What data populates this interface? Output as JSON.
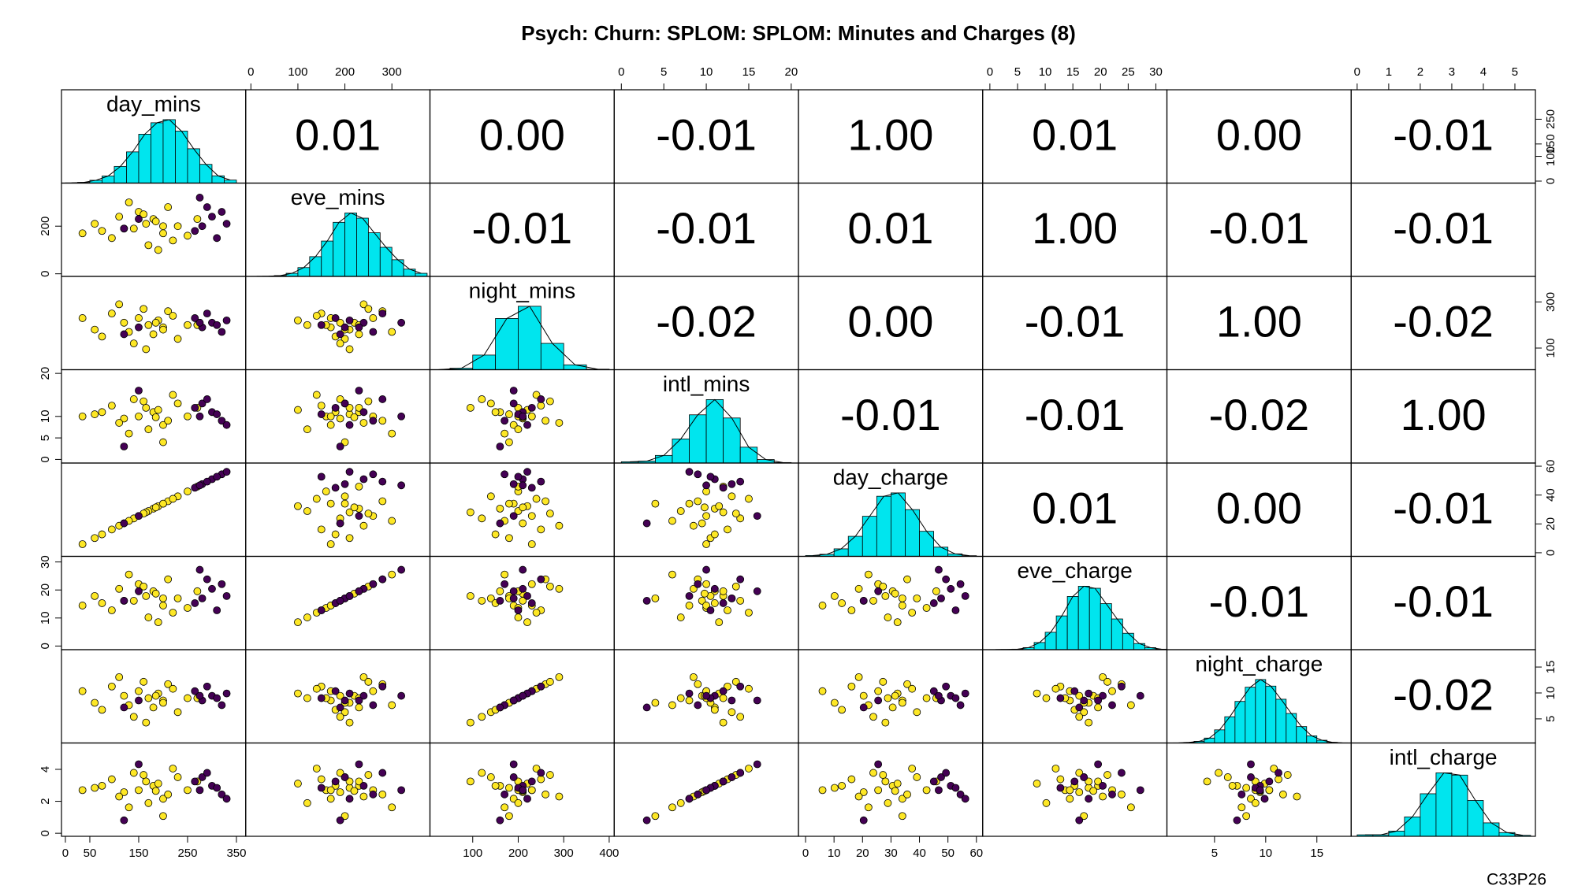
{
  "chart_data": {
    "type": "splom",
    "title": "Psych: Churn: SPLOM: SPLOM: Minutes and Charges (8)",
    "caption": "C33P26",
    "hist_color": "#00e5ee",
    "variables": [
      {
        "name": "day_mins",
        "lim": [
          -8,
          369
        ],
        "ticks": [
          0,
          50,
          150,
          250,
          350
        ],
        "side_ticks": [
          0,
          100,
          150,
          250
        ],
        "bins": [
          0,
          25,
          50,
          75,
          100,
          125,
          150,
          175,
          200,
          225,
          250,
          275,
          300,
          325,
          350
        ],
        "counts": [
          2,
          7,
          27,
          68,
          160,
          300,
          470,
          580,
          610,
          500,
          330,
          180,
          70,
          29
        ]
      },
      {
        "name": "eve_mins",
        "lim": [
          -11,
          381
        ],
        "ticks": [
          0,
          100,
          200,
          300
        ],
        "side_ticks": [
          0,
          200
        ],
        "bins": [
          0,
          25,
          50,
          75,
          100,
          125,
          150,
          175,
          200,
          225,
          250,
          275,
          300,
          325,
          350,
          375
        ],
        "counts": [
          1,
          2,
          8,
          30,
          85,
          190,
          340,
          520,
          610,
          560,
          420,
          280,
          160,
          70,
          30
        ]
      },
      {
        "name": "night_mins",
        "lim": [
          6,
          411
        ],
        "ticks": [
          100,
          200,
          300,
          400
        ],
        "side_ticks": [
          100,
          300
        ],
        "bins": [
          0,
          50,
          100,
          150,
          200,
          250,
          300,
          350,
          400
        ],
        "counts": [
          2,
          30,
          300,
          1050,
          1300,
          540,
          100,
          11
        ]
      },
      {
        "name": "intl_mins",
        "lim": [
          -0.84,
          20.85
        ],
        "ticks": [
          0,
          5,
          10,
          15,
          20
        ],
        "side_ticks": [
          0,
          5,
          10,
          20
        ],
        "bins": [
          0,
          2,
          4,
          6,
          8,
          10,
          12,
          14,
          16,
          18,
          20
        ],
        "counts": [
          20,
          30,
          120,
          380,
          760,
          1000,
          710,
          250,
          55,
          8
        ]
      },
      {
        "name": "day_charge",
        "lim": [
          -2.5,
          62.2
        ],
        "ticks": [
          0,
          10,
          20,
          30,
          40,
          50,
          60
        ],
        "side_ticks": [
          0,
          20,
          40,
          60
        ],
        "bins": [
          0,
          5,
          10,
          15,
          20,
          25,
          30,
          35,
          40,
          45,
          50,
          55,
          60
        ],
        "counts": [
          10,
          25,
          90,
          240,
          480,
          720,
          760,
          560,
          300,
          110,
          30,
          8
        ]
      },
      {
        "name": "eve_charge",
        "lim": [
          -1.3,
          32
        ],
        "ticks": [
          0,
          5,
          10,
          15,
          20,
          25,
          30
        ],
        "side_ticks": [
          0,
          10,
          20,
          30
        ],
        "bins": [
          0,
          2,
          4,
          6,
          8,
          10,
          12,
          14,
          16,
          18,
          20,
          22,
          24,
          26,
          28,
          30,
          32
        ],
        "counts": [
          1,
          2,
          5,
          20,
          70,
          170,
          330,
          520,
          620,
          600,
          450,
          300,
          160,
          60,
          20,
          5
        ]
      },
      {
        "name": "night_charge",
        "lim": [
          0.35,
          18.35
        ],
        "ticks": [
          5,
          10,
          15
        ],
        "side_ticks": [
          5,
          10,
          15
        ],
        "bins": [
          0,
          1,
          2,
          3,
          4,
          5,
          6,
          7,
          8,
          9,
          10,
          11,
          12,
          13,
          14,
          15,
          16,
          17,
          18
        ],
        "counts": [
          0,
          1,
          5,
          15,
          45,
          120,
          240,
          380,
          510,
          580,
          520,
          400,
          270,
          150,
          65,
          25,
          6,
          1
        ]
      },
      {
        "name": "intl_charge",
        "lim": [
          -0.19,
          5.65
        ],
        "ticks": [
          0,
          1,
          2,
          3,
          4,
          5
        ],
        "side_ticks": [
          0,
          2,
          4
        ],
        "bins": [
          0,
          0.5,
          1,
          1.5,
          2,
          2.5,
          3,
          3.5,
          4,
          4.5,
          5,
          5.5
        ],
        "counts": [
          20,
          20,
          70,
          260,
          570,
          850,
          820,
          480,
          180,
          50,
          13
        ]
      }
    ],
    "correlations": [
      [
        0.01,
        0,
        -0.01,
        1,
        0.01,
        0,
        -0.01
      ],
      [
        -0.01,
        -0.01,
        0.01,
        1,
        -0.01,
        -0.01
      ],
      [
        -0.02,
        0,
        -0.01,
        1,
        -0.02
      ],
      [
        -0.01,
        -0.01,
        -0.02,
        1
      ],
      [
        0.01,
        0,
        -0.01
      ],
      [
        -0.01,
        -0.01
      ],
      [
        -0.02
      ]
    ],
    "value_labels": [
      [
        "0.01",
        "0.00",
        "-0.01",
        "1.00",
        "0.01",
        "0.00",
        "-0.01"
      ],
      [
        "-0.01",
        "-0.01",
        "0.01",
        "1.00",
        "-0.01",
        "-0.01"
      ],
      [
        "-0.02",
        "0.00",
        "-0.01",
        "1.00",
        "-0.02"
      ],
      [
        "-0.01",
        "-0.01",
        "-0.02",
        "1.00"
      ],
      [
        "0.01",
        "0.00",
        "-0.01"
      ],
      [
        "-0.01",
        "-0.01"
      ],
      [
        "-0.02"
      ]
    ],
    "groups": [
      {
        "color": "#fde725",
        "records": [
          [
            120,
            190,
            210,
            9.5,
            20.4,
            16.15,
            9.45,
            2.57
          ],
          [
            180,
            230,
            160,
            11,
            30.6,
            19.55,
            7.2,
            2.97
          ],
          [
            95,
            150,
            250,
            12.5,
            16.15,
            12.75,
            11.25,
            3.38
          ],
          [
            200,
            170,
            190,
            8,
            34,
            14.45,
            8.55,
            2.16
          ],
          [
            150,
            260,
            230,
            10,
            25.5,
            22.1,
            10.35,
            2.7
          ],
          [
            230,
            200,
            140,
            13,
            39.1,
            17,
            6.3,
            3.51
          ],
          [
            170,
            120,
            200,
            7,
            28.9,
            10.2,
            9,
            1.89
          ],
          [
            60,
            210,
            180,
            10.5,
            10.2,
            17.85,
            8.1,
            2.84
          ],
          [
            210,
            280,
            260,
            9,
            35.7,
            23.8,
            11.7,
            2.43
          ],
          [
            140,
            190,
            120,
            14,
            23.8,
            16.15,
            5.4,
            3.78
          ],
          [
            190,
            100,
            220,
            11.5,
            32.3,
            8.5,
            9.9,
            3.11
          ],
          [
            110,
            240,
            290,
            8.5,
            18.7,
            20.4,
            13.05,
            2.3
          ],
          [
            250,
            160,
            200,
            10,
            42.5,
            13.6,
            9,
            2.7
          ],
          [
            165,
            210,
            95,
            12,
            28.05,
            17.85,
            4.28,
            3.24
          ],
          [
            130,
            300,
            170,
            6,
            22.1,
            25.5,
            7.65,
            1.62
          ],
          [
            220,
            140,
            240,
            15,
            37.4,
            11.9,
            10.8,
            4.05
          ],
          [
            185,
            220,
            210,
            9.8,
            31.45,
            18.7,
            9.45,
            2.65
          ],
          [
            75,
            180,
            150,
            11,
            12.75,
            15.3,
            6.75,
            2.97
          ],
          [
            160,
            250,
            270,
            13.5,
            27.2,
            21.25,
            12.15,
            3.65
          ],
          [
            200,
            200,
            180,
            4,
            34,
            17,
            8.1,
            1.08
          ],
          [
            35,
            170,
            230,
            10,
            5.95,
            14.45,
            10.35,
            2.7
          ],
          [
            270,
            230,
            200,
            12,
            45.9,
            19.55,
            9,
            3.24
          ]
        ]
      },
      {
        "color": "#440154",
        "records": [
          [
            300,
            240,
            210,
            11,
            51,
            20.4,
            9.45,
            2.97
          ],
          [
            280,
            200,
            190,
            13,
            47.6,
            17,
            8.55,
            3.51
          ],
          [
            320,
            260,
            170,
            9,
            54.4,
            22.1,
            7.65,
            2.43
          ],
          [
            265,
            180,
            230,
            12,
            45.05,
            15.3,
            10.35,
            3.24
          ],
          [
            310,
            150,
            200,
            10.5,
            52.7,
            12.75,
            9,
            2.84
          ],
          [
            290,
            280,
            250,
            14,
            49.3,
            23.8,
            11.25,
            3.78
          ],
          [
            150,
            230,
            190,
            16,
            25.5,
            19.55,
            8.55,
            4.32
          ],
          [
            330,
            210,
            220,
            8,
            56.1,
            17.85,
            9.9,
            2.16
          ],
          [
            120,
            190,
            160,
            3,
            20.4,
            16.15,
            7.2,
            0.81
          ],
          [
            275,
            320,
            210,
            10,
            46.75,
            27.2,
            9.45,
            2.7
          ]
        ]
      }
    ]
  }
}
